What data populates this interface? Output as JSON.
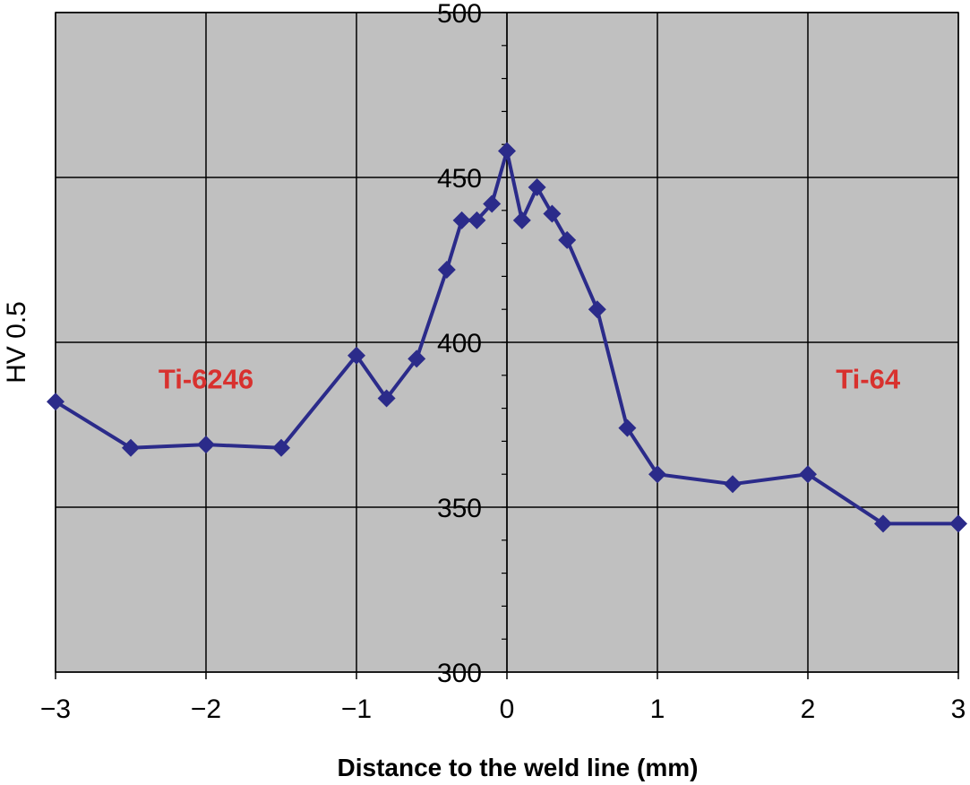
{
  "chart_data": {
    "type": "line",
    "xlabel": "Distance to the weld line (mm)",
    "ylabel": "HV 0.5",
    "xlim": [
      -3,
      3
    ],
    "ylim": [
      300,
      500
    ],
    "x_ticks": [
      -3,
      -2,
      -1,
      0,
      1,
      2,
      3
    ],
    "x_tick_labels": [
      "−3",
      "−2",
      "−1",
      "0",
      "1",
      "2",
      "3"
    ],
    "y_ticks": [
      300,
      350,
      400,
      450,
      500
    ],
    "y_tick_labels": [
      "300",
      "350",
      "400",
      "450",
      "500"
    ],
    "grid": true,
    "plot_background": "#c0c0c0",
    "series": [
      {
        "color": "#2b2b8a",
        "marker": "diamond",
        "points": [
          {
            "x": -3.0,
            "y": 382
          },
          {
            "x": -2.5,
            "y": 368
          },
          {
            "x": -2.0,
            "y": 369
          },
          {
            "x": -1.5,
            "y": 368
          },
          {
            "x": -1.0,
            "y": 396
          },
          {
            "x": -0.8,
            "y": 383
          },
          {
            "x": -0.6,
            "y": 395
          },
          {
            "x": -0.4,
            "y": 422
          },
          {
            "x": -0.3,
            "y": 437
          },
          {
            "x": -0.2,
            "y": 437
          },
          {
            "x": -0.1,
            "y": 442
          },
          {
            "x": 0.0,
            "y": 458
          },
          {
            "x": 0.1,
            "y": 437
          },
          {
            "x": 0.2,
            "y": 447
          },
          {
            "x": 0.3,
            "y": 439
          },
          {
            "x": 0.4,
            "y": 431
          },
          {
            "x": 0.6,
            "y": 410
          },
          {
            "x": 0.8,
            "y": 374
          },
          {
            "x": 1.0,
            "y": 360
          },
          {
            "x": 1.5,
            "y": 357
          },
          {
            "x": 2.0,
            "y": 360
          },
          {
            "x": 2.5,
            "y": 345
          },
          {
            "x": 3.0,
            "y": 345
          }
        ]
      }
    ],
    "annotations": [
      {
        "text": "Ti-6246",
        "x": -2.0,
        "y": 389,
        "color": "#d8312e"
      },
      {
        "text": "Ti-64",
        "x": 2.4,
        "y": 389,
        "color": "#d8312e"
      }
    ]
  }
}
